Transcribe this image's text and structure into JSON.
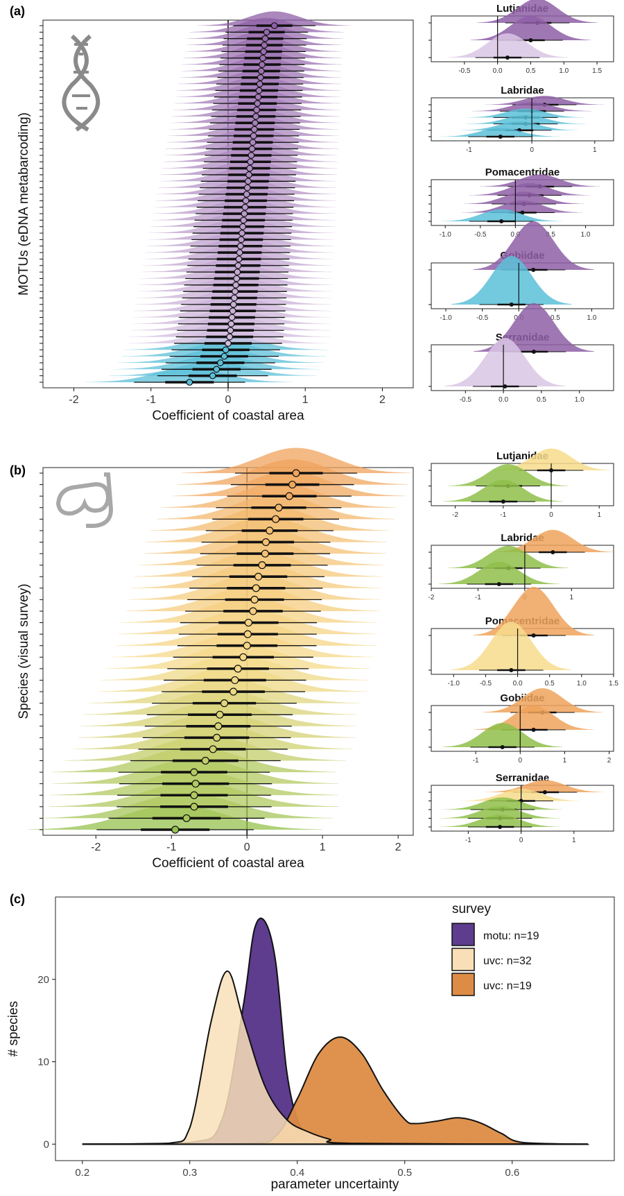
{
  "panel_labels": [
    "(a)",
    "(b)",
    "(c)"
  ],
  "colors": {
    "motu_high": "#8e5fa6",
    "motu_low": "#d9c6e4",
    "motu_neg": "#5bbfd8",
    "uvc_high": "#f0a35c",
    "uvc_mid": "#f7dc8c",
    "uvc_low": "#8fbf4a",
    "density_motu": "#5e3c8e",
    "density_uvc32": "#f8dfb8",
    "density_uvc19": "#dd8c45"
  },
  "chart_data": [
    {
      "id": "a-main",
      "type": "scatter",
      "description_axis": "ridgeline",
      "xlabel": "Coefficient of coastal area",
      "ylabel": "MOTUs (eDNA metabarcoding)",
      "xlim": [
        -2.4,
        2.4
      ],
      "xticks": [
        -2,
        -1,
        0,
        1,
        2
      ],
      "icon": "dna-icon",
      "values": [
        -0.5,
        -0.2,
        -0.15,
        -0.1,
        -0.05,
        -0.03,
        0.0,
        0.02,
        0.03,
        0.04,
        0.05,
        0.06,
        0.07,
        0.08,
        0.09,
        0.1,
        0.11,
        0.12,
        0.13,
        0.14,
        0.15,
        0.16,
        0.17,
        0.18,
        0.19,
        0.2,
        0.21,
        0.22,
        0.23,
        0.24,
        0.25,
        0.26,
        0.27,
        0.28,
        0.29,
        0.3,
        0.31,
        0.32,
        0.33,
        0.34,
        0.35,
        0.36,
        0.37,
        0.38,
        0.39,
        0.4,
        0.41,
        0.42,
        0.43,
        0.44,
        0.45,
        0.46,
        0.47,
        0.48,
        0.5,
        0.6
      ]
    },
    {
      "id": "a-lutjanidae",
      "type": "scatter",
      "title": "Lutjanidae",
      "xlim": [
        -1.0,
        1.75
      ],
      "xticks": [
        -0.5,
        0.0,
        0.5,
        1.0,
        1.5
      ],
      "xtick_labels": [
        "-0.5",
        "0.0",
        "0.5",
        "1.0",
        "1.5"
      ],
      "values": [
        0.6,
        0.5,
        0.15
      ],
      "groups": [
        "high",
        "high",
        "low"
      ]
    },
    {
      "id": "a-labridae",
      "type": "scatter",
      "title": "Labridae",
      "xlim": [
        -1.6,
        1.3
      ],
      "xticks": [
        -1,
        0,
        1
      ],
      "xtick_labels": [
        "-1",
        "0",
        "1"
      ],
      "values": [
        0.2,
        0.0,
        -0.1,
        -0.1,
        -0.2,
        -0.5
      ],
      "groups": [
        "high",
        "high",
        "neg",
        "neg",
        "neg",
        "neg"
      ]
    },
    {
      "id": "a-pomacentridae",
      "type": "scatter",
      "title": "Pomacentridae",
      "xlim": [
        -1.2,
        1.4
      ],
      "xticks": [
        -1.0,
        -0.5,
        0.0,
        0.5,
        1.0
      ],
      "xtick_labels": [
        "-1.0",
        "-0.5",
        "0.0",
        "0.5",
        "1.0"
      ],
      "values": [
        0.35,
        0.2,
        0.12,
        0.1,
        -0.2
      ],
      "groups": [
        "high",
        "high",
        "high",
        "high",
        "neg"
      ]
    },
    {
      "id": "a-gobiidae",
      "type": "scatter",
      "title": "Gobiidae",
      "xlim": [
        -1.2,
        1.3
      ],
      "xticks": [
        -1.0,
        -0.5,
        0.0,
        0.5,
        1.0
      ],
      "xtick_labels": [
        "-1.0",
        "-0.5",
        "0.0",
        "0.5",
        "1.0"
      ],
      "values": [
        0.2,
        -0.1
      ],
      "groups": [
        "high",
        "neg"
      ]
    },
    {
      "id": "a-serranidae",
      "type": "scatter",
      "title": "Serranidae",
      "xlim": [
        -0.95,
        1.45
      ],
      "xticks": [
        -0.5,
        0.0,
        0.5,
        1.0
      ],
      "xtick_labels": [
        "-0.5",
        "0.0",
        "0.5",
        "1.0"
      ],
      "values": [
        0.4,
        0.02
      ],
      "groups": [
        "high",
        "low"
      ]
    },
    {
      "id": "b-main",
      "type": "scatter",
      "description_axis": "ridgeline",
      "xlabel": "Coefficient of coastal area",
      "ylabel": "Species (visual survey)",
      "xlim": [
        -2.7,
        2.2
      ],
      "xticks": [
        -2,
        -1,
        0,
        1,
        2
      ],
      "icon": "snorkel-mask-icon",
      "values": [
        -0.95,
        -0.8,
        -0.7,
        -0.7,
        -0.68,
        -0.7,
        -0.55,
        -0.45,
        -0.4,
        -0.38,
        -0.36,
        -0.3,
        -0.18,
        -0.16,
        -0.12,
        -0.05,
        0.0,
        0.01,
        0.02,
        0.08,
        0.1,
        0.12,
        0.15,
        0.2,
        0.24,
        0.25,
        0.3,
        0.38,
        0.42,
        0.56,
        0.6,
        0.65
      ]
    },
    {
      "id": "b-lutjanidae",
      "type": "scatter",
      "title": "Lutjanidae",
      "xlim": [
        -2.5,
        1.3
      ],
      "xticks": [
        -2,
        -1,
        0,
        1
      ],
      "xtick_labels": [
        "-2",
        "-1",
        "0",
        "1"
      ],
      "values": [
        0.0,
        -0.9,
        -1.0
      ],
      "groups": [
        "mid",
        "low",
        "low"
      ]
    },
    {
      "id": "b-labridae",
      "type": "scatter",
      "title": "Labridae",
      "xlim": [
        -2.0,
        1.9
      ],
      "xticks": [
        -2,
        -1,
        0,
        1
      ],
      "xtick_labels": [
        "-2",
        "-1",
        "0",
        "1"
      ],
      "values": [
        0.6,
        -0.35,
        -0.55
      ],
      "groups": [
        "high",
        "low",
        "low"
      ]
    },
    {
      "id": "b-pomacentridae",
      "type": "scatter",
      "title": "Pomacentridae",
      "xlim": [
        -1.35,
        1.5
      ],
      "xticks": [
        -1.0,
        -0.5,
        0.0,
        0.5,
        1.0,
        1.5
      ],
      "xtick_labels": [
        "-1.0",
        "-0.5",
        "0.0",
        "0.5",
        "1.0",
        "1.5"
      ],
      "values": [
        0.25,
        -0.1
      ],
      "groups": [
        "high",
        "mid"
      ]
    },
    {
      "id": "b-gobiidae",
      "type": "scatter",
      "title": "Gobiidae",
      "xlim": [
        -2.0,
        2.1
      ],
      "xticks": [
        -1,
        0,
        1,
        2
      ],
      "xtick_labels": [
        "-1",
        "0",
        "1",
        "2"
      ],
      "values": [
        0.5,
        0.3,
        -0.4
      ],
      "groups": [
        "high",
        "high",
        "low"
      ]
    },
    {
      "id": "b-serranidae",
      "type": "scatter",
      "title": "Serranidae",
      "xlim": [
        -1.7,
        1.75
      ],
      "xticks": [
        -1,
        0,
        1
      ],
      "xtick_labels": [
        "-1",
        "0",
        "1"
      ],
      "values": [
        0.45,
        0.0,
        -0.35,
        -0.4,
        -0.4
      ],
      "groups": [
        "high",
        "mid",
        "low",
        "low",
        "low"
      ]
    },
    {
      "id": "c-density",
      "type": "area",
      "xlabel": "parameter uncertainty",
      "ylabel": "# species",
      "xlim": [
        0.2,
        0.67
      ],
      "ylim": [
        0,
        28
      ],
      "xticks": [
        0.2,
        0.3,
        0.4,
        0.5,
        0.6
      ],
      "xtick_labels": [
        "0.2",
        "0.3",
        "0.4",
        "0.5",
        "0.6"
      ],
      "yticks": [
        0,
        10,
        20
      ],
      "legend_title": "survey",
      "legend_position": "top-right",
      "series": [
        {
          "name": "motu: n=19",
          "x": [
            0.2,
            0.3,
            0.33,
            0.35,
            0.36,
            0.37,
            0.38,
            0.39,
            0.4,
            0.41,
            0.42,
            0.67
          ],
          "values": [
            0,
            0.2,
            3,
            17,
            26,
            27,
            22,
            9,
            3,
            1,
            0.1,
            0
          ]
        },
        {
          "name": "uvc: n=32",
          "x": [
            0.2,
            0.28,
            0.3,
            0.32,
            0.335,
            0.35,
            0.37,
            0.39,
            0.41,
            0.43,
            0.45,
            0.67
          ],
          "values": [
            0,
            0.1,
            2,
            15,
            21,
            15,
            7,
            3,
            1.5,
            0.6,
            0.1,
            0
          ]
        },
        {
          "name": "uvc: n=19",
          "x": [
            0.2,
            0.35,
            0.38,
            0.4,
            0.42,
            0.44,
            0.46,
            0.48,
            0.5,
            0.51,
            0.53,
            0.55,
            0.57,
            0.59,
            0.61,
            0.67
          ],
          "values": [
            0,
            0.1,
            1,
            5.5,
            11,
            13,
            11,
            6.5,
            3,
            2.5,
            2.8,
            3.2,
            2.6,
            1.3,
            0.2,
            0
          ]
        }
      ]
    }
  ]
}
